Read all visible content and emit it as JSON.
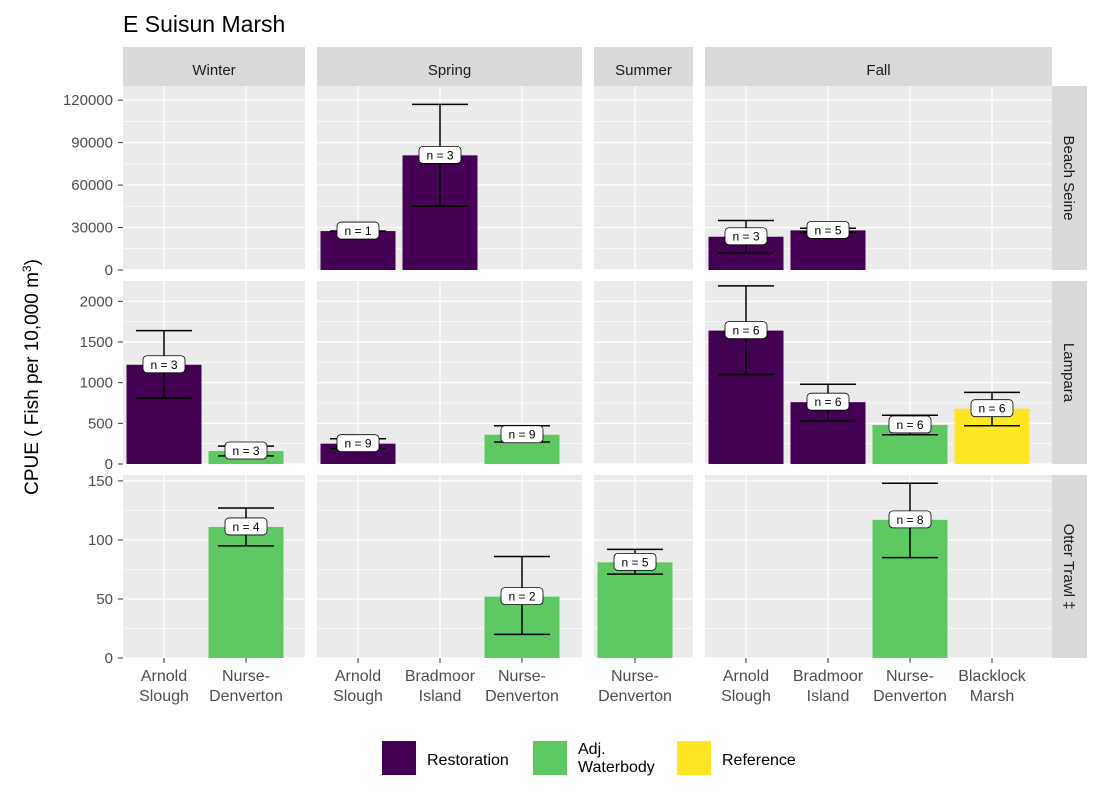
{
  "chart_data": {
    "type": "bar",
    "title": "E Suisun Marsh",
    "ylabel": "CPUE ( Fish per 10,000 m",
    "ylabel_sup": "3",
    "ylabel_end": ")",
    "seasons": [
      "Winter",
      "Spring",
      "Summer",
      "Fall"
    ],
    "methods": [
      "Beach Seine",
      "Lampara",
      "Otter Trawl ‡"
    ],
    "season_sites": {
      "Winter": [
        "Arnold Slough",
        "Nurse-Denverton"
      ],
      "Spring": [
        "Arnold Slough",
        "Bradmoor Island",
        "Nurse-Denverton"
      ],
      "Summer": [
        "Nurse-Denverton"
      ],
      "Fall": [
        "Arnold Slough",
        "Bradmoor Island",
        "Nurse-Denverton",
        "Blacklock Marsh"
      ]
    },
    "site_labels": {
      "Arnold Slough": [
        "Arnold",
        "Slough"
      ],
      "Bradmoor Island": [
        "Bradmoor",
        "Island"
      ],
      "Nurse-Denverton": [
        "Nurse-",
        "Denverton"
      ],
      "Blacklock Marsh": [
        "Blacklock",
        "Marsh"
      ]
    },
    "y_ranges": {
      "Beach Seine": [
        0,
        130000
      ],
      "Lampara": [
        0,
        2250
      ],
      "Otter Trawl ‡": [
        0,
        155
      ]
    },
    "y_ticks": {
      "Beach Seine": [
        0,
        30000,
        60000,
        90000,
        120000
      ],
      "Lampara": [
        0,
        500,
        1000,
        1500,
        2000
      ],
      "Otter Trawl ‡": [
        0,
        50,
        100,
        150
      ]
    },
    "legend": [
      {
        "label": "Restoration",
        "color": "#440154"
      },
      {
        "label": "Adj.\nWaterbody",
        "color": "#5ec962"
      },
      {
        "label": "Reference",
        "color": "#fde725"
      }
    ],
    "legend_position": "bottom",
    "grid": true,
    "bars": [
      {
        "method": "Beach Seine",
        "season": "Spring",
        "site": "Arnold Slough",
        "value": 27500,
        "lower": 27500,
        "upper": 27500,
        "n": "n = 1",
        "group": "Restoration"
      },
      {
        "method": "Beach Seine",
        "season": "Spring",
        "site": "Bradmoor Island",
        "value": 81000,
        "lower": 45000,
        "upper": 117000,
        "n": "n = 3",
        "group": "Restoration"
      },
      {
        "method": "Beach Seine",
        "season": "Fall",
        "site": "Arnold Slough",
        "value": 23500,
        "lower": 12000,
        "upper": 35000,
        "n": "n = 3",
        "group": "Restoration"
      },
      {
        "method": "Beach Seine",
        "season": "Fall",
        "site": "Bradmoor Island",
        "value": 28000,
        "lower": 26500,
        "upper": 29500,
        "n": "n = 5",
        "group": "Restoration"
      },
      {
        "method": "Lampara",
        "season": "Winter",
        "site": "Arnold Slough",
        "value": 1220,
        "lower": 810,
        "upper": 1640,
        "n": "n = 3",
        "group": "Restoration"
      },
      {
        "method": "Lampara",
        "season": "Winter",
        "site": "Nurse-Denverton",
        "value": 160,
        "lower": 100,
        "upper": 220,
        "n": "n = 3",
        "group": "Adj.\nWaterbody"
      },
      {
        "method": "Lampara",
        "season": "Spring",
        "site": "Arnold Slough",
        "value": 250,
        "lower": 190,
        "upper": 310,
        "n": "n = 9",
        "group": "Restoration"
      },
      {
        "method": "Lampara",
        "season": "Spring",
        "site": "Nurse-Denverton",
        "value": 360,
        "lower": 270,
        "upper": 470,
        "n": "n = 9",
        "group": "Adj.\nWaterbody"
      },
      {
        "method": "Lampara",
        "season": "Fall",
        "site": "Arnold Slough",
        "value": 1640,
        "lower": 1100,
        "upper": 2190,
        "n": "n = 6",
        "group": "Restoration"
      },
      {
        "method": "Lampara",
        "season": "Fall",
        "site": "Bradmoor Island",
        "value": 760,
        "lower": 530,
        "upper": 980,
        "n": "n = 6",
        "group": "Restoration"
      },
      {
        "method": "Lampara",
        "season": "Fall",
        "site": "Nurse-Denverton",
        "value": 480,
        "lower": 360,
        "upper": 600,
        "n": "n = 6",
        "group": "Adj.\nWaterbody"
      },
      {
        "method": "Lampara",
        "season": "Fall",
        "site": "Blacklock Marsh",
        "value": 680,
        "lower": 470,
        "upper": 880,
        "n": "n = 6",
        "group": "Reference"
      },
      {
        "method": "Otter Trawl ‡",
        "season": "Winter",
        "site": "Nurse-Denverton",
        "value": 111,
        "lower": 95,
        "upper": 127,
        "n": "n = 4",
        "group": "Adj.\nWaterbody"
      },
      {
        "method": "Otter Trawl ‡",
        "season": "Spring",
        "site": "Nurse-Denverton",
        "value": 52,
        "lower": 20,
        "upper": 86,
        "n": "n = 2",
        "group": "Adj.\nWaterbody"
      },
      {
        "method": "Otter Trawl ‡",
        "season": "Summer",
        "site": "Nurse-Denverton",
        "value": 81,
        "lower": 71,
        "upper": 92,
        "n": "n = 5",
        "group": "Adj.\nWaterbody"
      },
      {
        "method": "Otter Trawl ‡",
        "season": "Fall",
        "site": "Nurse-Denverton",
        "value": 117,
        "lower": 85,
        "upper": 148,
        "n": "n = 8",
        "group": "Adj.\nWaterbody"
      }
    ]
  }
}
